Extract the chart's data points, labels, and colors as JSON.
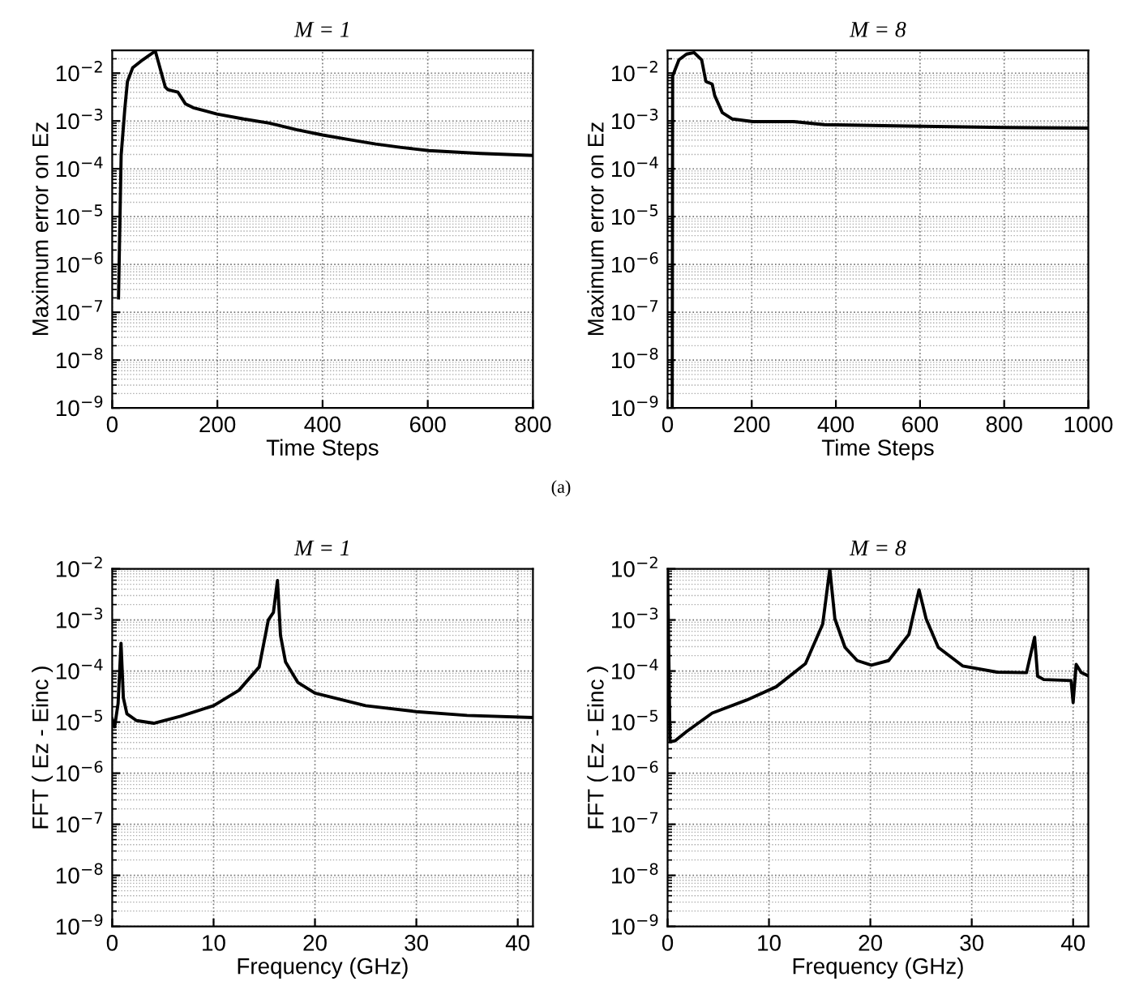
{
  "chart_data": [
    {
      "type": "line",
      "title": "M = 1",
      "xlabel": "Time Steps",
      "ylabel": "Maximum error on Ez",
      "log": "y",
      "grid": true,
      "annotations": [
        "(a)"
      ],
      "xlim": [
        0,
        800
      ],
      "xticks": [
        0,
        200,
        400,
        600,
        800
      ],
      "ylim": [
        1e-09,
        0.03
      ],
      "yticks": [
        {
          "value": 1e-09,
          "label": "10$^{−9}$"
        },
        {
          "value": 1e-08,
          "label": "10$^{−8}$"
        },
        {
          "value": 1e-07,
          "label": "10$^{−7}$"
        },
        {
          "value": 1e-06,
          "label": "10$^{−6}$"
        },
        {
          "value": 1e-05,
          "label": "10$^{−5}$"
        },
        {
          "value": 0.0001,
          "label": "10$^{−4}$"
        },
        {
          "value": 0.001,
          "label": "10$^{−3}$"
        },
        {
          "value": 0.01,
          "label": "10$^{−2}$"
        }
      ],
      "series": [
        {
          "color": "#000000",
          "x": [
            12,
            17,
            24,
            29,
            39,
            58,
            82,
            101,
            106,
            125,
            139,
            154,
            199,
            250,
            299,
            350,
            400,
            450,
            501,
            550,
            602,
            700,
            800
          ],
          "values": [
            2e-07,
            0.00019,
            0.0018,
            0.0067,
            0.013,
            0.019,
            0.029,
            0.0051,
            0.0045,
            0.004,
            0.0023,
            0.0019,
            0.0014,
            0.0011,
            0.0009,
            0.00066,
            0.00051,
            0.00041,
            0.00033,
            0.00028,
            0.00024,
            0.00021,
            0.00019
          ]
        }
      ]
    },
    {
      "type": "line",
      "title": "M = 8",
      "xlabel": "Time Steps",
      "ylabel": "Maximum error on Ez",
      "log": "y",
      "grid": true,
      "xlim": [
        0,
        1000
      ],
      "xticks": [
        0,
        200,
        400,
        600,
        800,
        1000
      ],
      "ylim": [
        1e-09,
        0.03
      ],
      "yticks": [
        {
          "value": 1e-09,
          "label": "10$^{−9}$"
        },
        {
          "value": 1e-08,
          "label": "10$^{−8}$"
        },
        {
          "value": 1e-07,
          "label": "10$^{−7}$"
        },
        {
          "value": 1e-06,
          "label": "10$^{−6}$"
        },
        {
          "value": 1e-05,
          "label": "10$^{−5}$"
        },
        {
          "value": 0.0001,
          "label": "10$^{−4}$"
        },
        {
          "value": 0.001,
          "label": "10$^{−3}$"
        },
        {
          "value": 0.01,
          "label": "10$^{−2}$"
        }
      ],
      "series": [
        {
          "color": "#000000",
          "x": [
            11,
            12,
            27,
            45,
            63,
            81,
            91,
            106,
            112,
            130,
            154,
            203,
            300,
            373,
            542,
            800,
            1000
          ],
          "values": [
            1e-09,
            0.0087,
            0.019,
            0.025,
            0.027,
            0.019,
            0.0067,
            0.0059,
            0.0034,
            0.0015,
            0.0011,
            0.00097,
            0.00097,
            0.00084,
            0.00079,
            0.00073,
            0.00071
          ]
        }
      ]
    },
    {
      "type": "line",
      "title": "M = 1",
      "xlabel": "Frequency (GHz)",
      "ylabel": "FFT ( Ez - Einc )",
      "log": "y",
      "grid": true,
      "xlim": [
        0,
        41.5
      ],
      "xticks": [
        0,
        10,
        20,
        30,
        40
      ],
      "ylim": [
        1e-09,
        0.01
      ],
      "yticks": [
        {
          "value": 1e-09,
          "label": "10$^{−9}$"
        },
        {
          "value": 1e-08,
          "label": "10$^{−8}$"
        },
        {
          "value": 1e-07,
          "label": "10$^{−7}$"
        },
        {
          "value": 1e-06,
          "label": "10$^{−6}$"
        },
        {
          "value": 1e-05,
          "label": "10$^{−5}$"
        },
        {
          "value": 0.0001,
          "label": "10$^{−4}$"
        },
        {
          "value": 0.001,
          "label": "10$^{−3}$"
        },
        {
          "value": 0.01,
          "label": "10$^{−2}$"
        }
      ],
      "series": [
        {
          "color": "#000000",
          "x": [
            0,
            0.24,
            0.58,
            0.87,
            1.1,
            1.45,
            2.4,
            4.1,
            6.75,
            10,
            12.5,
            14.5,
            15.4,
            15.9,
            16.3,
            16.6,
            17.1,
            18.3,
            20,
            25,
            30,
            35,
            41.5
          ],
          "values": [
            1.15e-05,
            8.1e-06,
            2.3e-05,
            0.00035,
            3e-05,
            1.45e-05,
            1.07e-05,
            9.5e-06,
            1.3e-05,
            2.1e-05,
            4.2e-05,
            0.00012,
            0.001,
            0.0014,
            0.0059,
            0.0005,
            0.00015,
            6e-05,
            3.7e-05,
            2.1e-05,
            1.6e-05,
            1.35e-05,
            1.23e-05
          ]
        }
      ]
    },
    {
      "type": "line",
      "title": "M = 8",
      "xlabel": "Frequency (GHz)",
      "ylabel": "FFT ( Ez - Einc )",
      "log": "y",
      "grid": true,
      "xlim": [
        0,
        41.5
      ],
      "xticks": [
        0,
        10,
        20,
        30,
        40
      ],
      "ylim": [
        1e-09,
        0.01
      ],
      "yticks": [
        {
          "value": 1e-09,
          "label": "10$^{−9}$"
        },
        {
          "value": 1e-08,
          "label": "10$^{−8}$"
        },
        {
          "value": 1e-07,
          "label": "10$^{−7}$"
        },
        {
          "value": 1e-06,
          "label": "10$^{−6}$"
        },
        {
          "value": 1e-05,
          "label": "10$^{−5}$"
        },
        {
          "value": 0.0001,
          "label": "10$^{−4}$"
        },
        {
          "value": 0.001,
          "label": "10$^{−3}$"
        },
        {
          "value": 0.01,
          "label": "10$^{−2}$"
        }
      ],
      "series": [
        {
          "color": "#000000",
          "x": [
            0,
            0.24,
            0.73,
            1.9,
            4.4,
            7.8,
            10.7,
            13.6,
            15.3,
            16.0,
            16.5,
            17.5,
            18.7,
            20.1,
            21.8,
            23.8,
            24.8,
            25.5,
            26.7,
            29.1,
            32.5,
            35.4,
            36.2,
            36.5,
            37.1,
            39.8,
            40.0,
            40.3,
            40.8,
            41.5
          ],
          "values": [
            0.01,
            4.1e-06,
            4.3e-06,
            6.6e-06,
            1.5e-05,
            2.7e-05,
            4.9e-05,
            0.00014,
            0.00083,
            0.01,
            0.00105,
            0.00029,
            0.00016,
            0.00013,
            0.00016,
            0.00052,
            0.0039,
            0.00105,
            0.00029,
            0.000126,
            9.5e-05,
            9.3e-05,
            0.00046,
            7.9e-05,
            6.8e-05,
            6.5e-05,
            2.4e-05,
            0.000135,
            9.3e-05,
            8e-05
          ]
        }
      ]
    }
  ]
}
